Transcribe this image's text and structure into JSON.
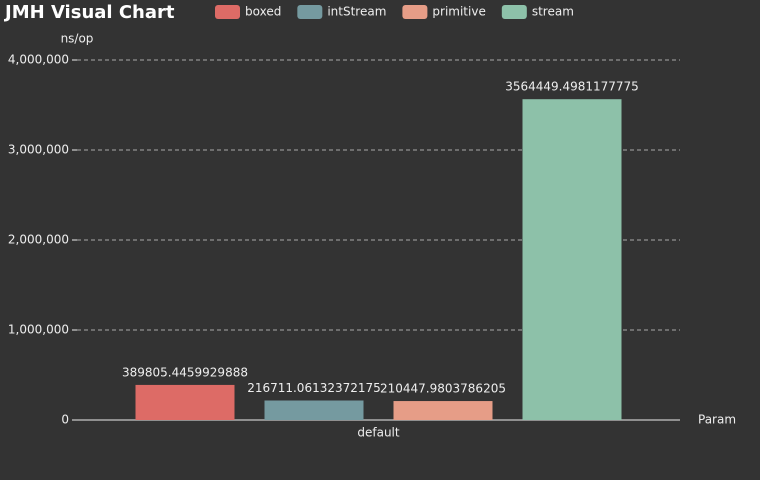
{
  "chart_data": {
    "type": "bar",
    "title": "JMH Visual Chart",
    "y_label": "ns/op",
    "x_label": "Param",
    "categories": [
      "default"
    ],
    "series": [
      {
        "name": "boxed",
        "color": "#dd6b66",
        "values": [
          389805.4459929888
        ]
      },
      {
        "name": "intStream",
        "color": "#759aa0",
        "values": [
          216711.06132372175
        ]
      },
      {
        "name": "primitive",
        "color": "#e69d87",
        "values": [
          210447.9803786205
        ]
      },
      {
        "name": "stream",
        "color": "#8dc1a9",
        "values": [
          3564449.4981177775
        ]
      }
    ],
    "ylim": [
      0,
      4000000
    ],
    "yticks": [
      0,
      {
        "value": 1000000,
        "label": "1,000,000"
      },
      {
        "value": 2000000,
        "label": "2,000,000"
      },
      {
        "value": 3000000,
        "label": "3,000,000"
      },
      {
        "value": 4000000,
        "label": "4,000,000"
      }
    ],
    "grid": true,
    "legend": "top"
  }
}
